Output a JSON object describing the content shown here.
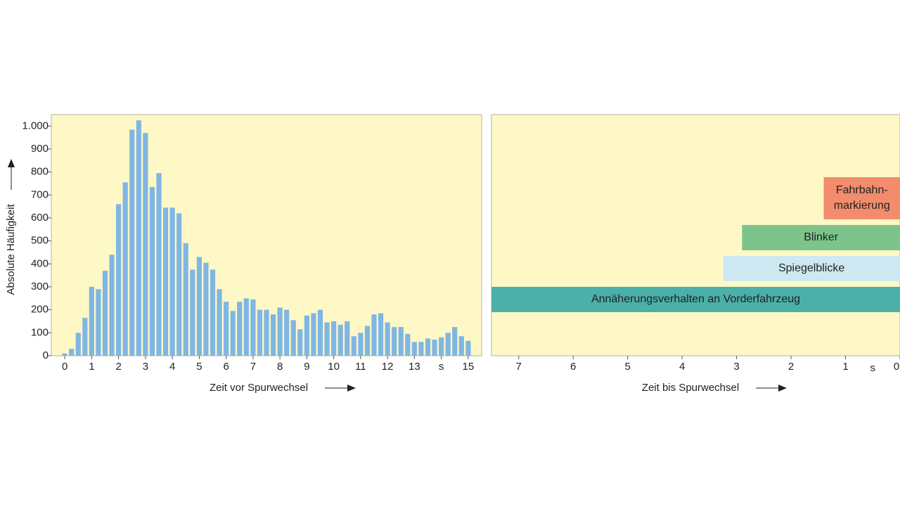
{
  "chart_data": [
    {
      "type": "bar",
      "ylabel": "Absolute Häufigkeit",
      "xlabel": "Zeit vor Spurwechsel",
      "x": [
        0,
        0.25,
        0.5,
        0.75,
        1,
        1.25,
        1.5,
        1.75,
        2,
        2.25,
        2.5,
        2.75,
        3,
        3.25,
        3.5,
        3.75,
        4,
        4.25,
        4.5,
        4.75,
        5,
        5.25,
        5.5,
        5.75,
        6,
        6.25,
        6.5,
        6.75,
        7,
        7.25,
        7.5,
        7.75,
        8,
        8.25,
        8.5,
        8.75,
        9,
        9.25,
        9.5,
        9.75,
        10,
        10.25,
        10.5,
        10.75,
        11,
        11.25,
        11.5,
        11.75,
        12,
        12.25,
        12.5,
        12.75,
        13,
        13.25,
        13.5,
        13.75,
        14,
        14.25,
        14.5,
        14.75,
        15
      ],
      "values": [
        10,
        30,
        100,
        165,
        300,
        290,
        370,
        440,
        660,
        755,
        985,
        1025,
        970,
        735,
        795,
        645,
        645,
        620,
        490,
        375,
        430,
        405,
        375,
        290,
        235,
        195,
        235,
        250,
        245,
        200,
        200,
        180,
        210,
        200,
        155,
        115,
        175,
        185,
        200,
        145,
        150,
        135,
        150,
        85,
        100,
        130,
        180,
        185,
        145,
        125,
        125,
        95,
        60,
        60,
        75,
        70,
        80,
        100,
        125,
        85,
        65
      ],
      "color": "#80b6e4",
      "xlim": [
        -0.5,
        15.5
      ],
      "ylim": [
        0,
        1050
      ],
      "xticks": [
        0,
        1,
        2,
        3,
        4,
        5,
        6,
        7,
        8,
        9,
        10,
        11,
        12,
        13,
        {
          "value": 14,
          "label": "s"
        },
        15
      ],
      "yticks": [
        0,
        100,
        200,
        300,
        400,
        500,
        600,
        700,
        800,
        900,
        {
          "value": 1000,
          "label": "1.000"
        }
      ]
    },
    {
      "type": "range",
      "xlabel": "Zeit bis Spurwechsel",
      "xunit": "s",
      "xlim": [
        7.5,
        0
      ],
      "xticks": [
        7,
        6,
        5,
        4,
        3,
        2,
        1,
        0
      ],
      "bars": [
        {
          "label": [
            "Fahrbahn-",
            "markierung"
          ],
          "start": 1.4,
          "end": 0,
          "color": "#f28c6c"
        },
        {
          "label": [
            "Blinker"
          ],
          "start": 2.9,
          "end": 0,
          "color": "#7dc48c"
        },
        {
          "label": [
            "Spiegelblicke"
          ],
          "start": 3.25,
          "end": 0,
          "color": "#cde8f1"
        },
        {
          "label": [
            "Annäherungsverhalten an Vorderfahrzeug"
          ],
          "start": 7.5,
          "end": 0,
          "color": "#4bafaa"
        }
      ]
    }
  ]
}
